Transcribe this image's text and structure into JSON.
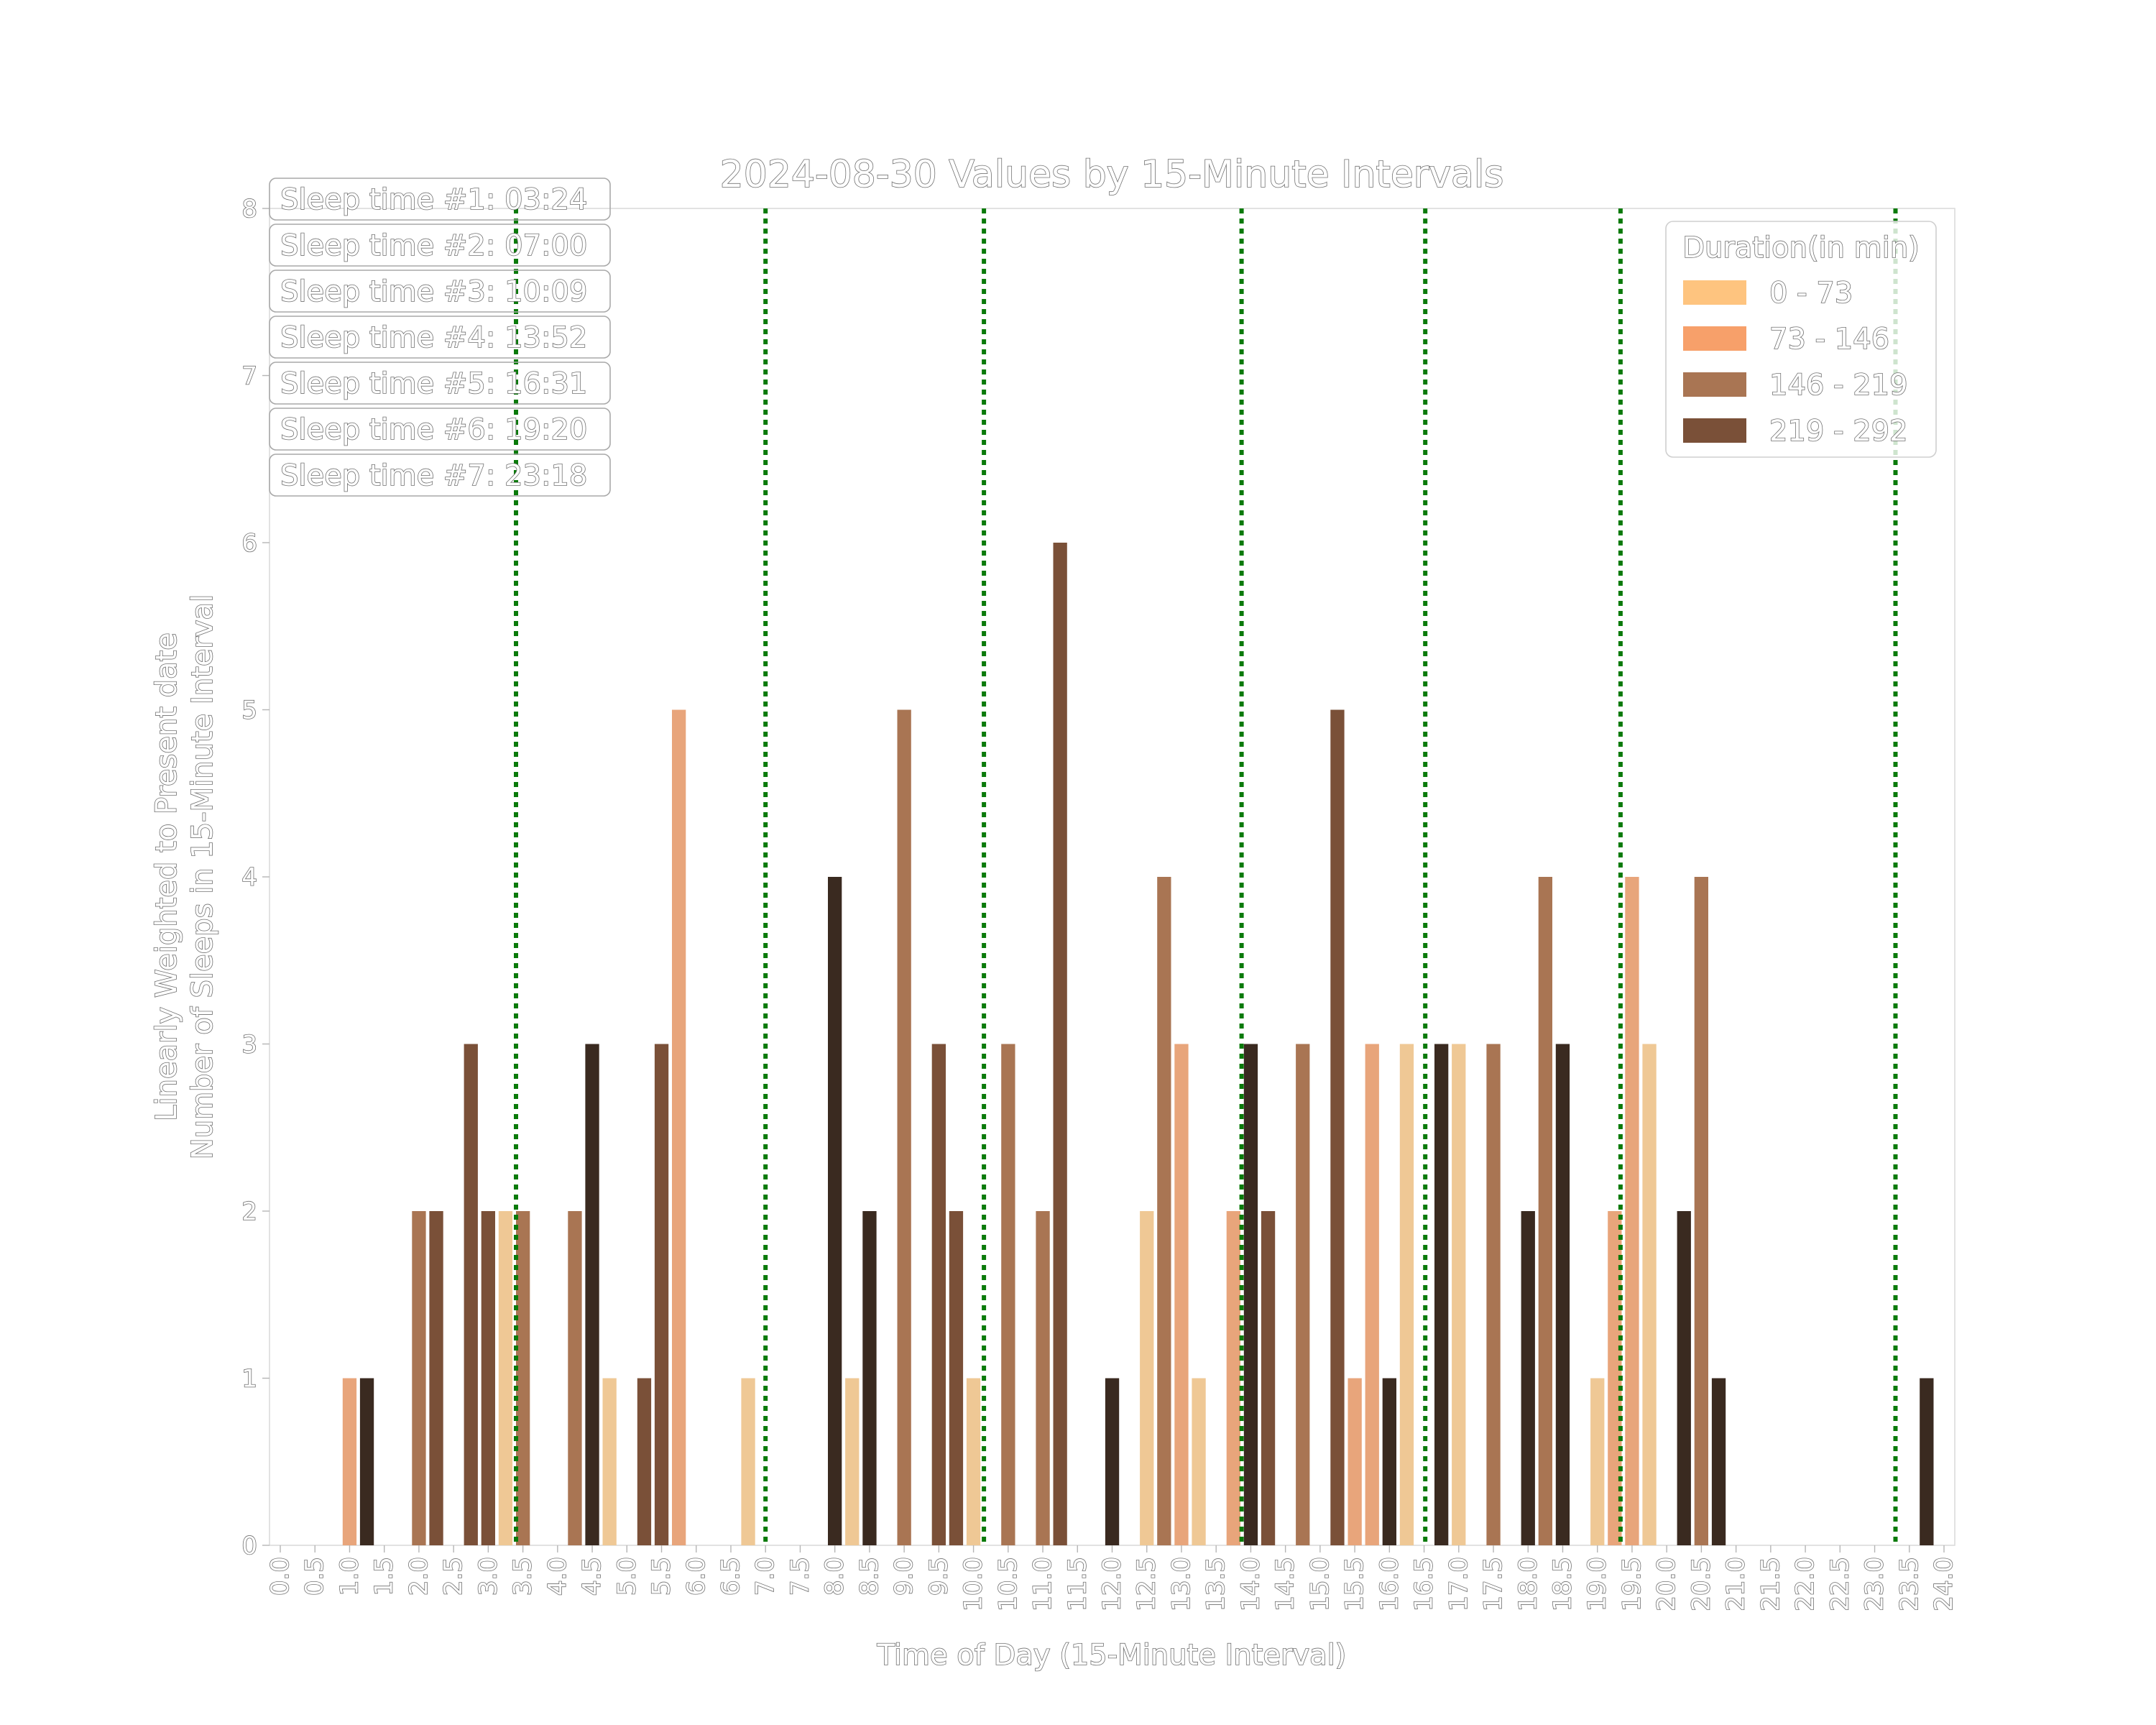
{
  "chart_data": {
    "type": "bar",
    "title": "2024-08-30 Values by 15-Minute Intervals",
    "xlabel": "Time of Day (15-Minute Interval)",
    "ylabel_lines": [
      "Linearly Weighted to Present date",
      "Number of Sleeps in 15-Minute Interval"
    ],
    "xlim": [
      0,
      24
    ],
    "ylim": [
      0,
      8
    ],
    "x_ticks": [
      0.0,
      0.5,
      1.0,
      1.5,
      2.0,
      2.5,
      3.0,
      3.5,
      4.0,
      4.5,
      5.0,
      5.5,
      6.0,
      6.5,
      7.0,
      7.5,
      8.0,
      8.5,
      9.0,
      9.5,
      10.0,
      10.5,
      11.0,
      11.5,
      12.0,
      12.5,
      13.0,
      13.5,
      14.0,
      14.5,
      15.0,
      15.5,
      16.0,
      16.5,
      17.0,
      17.5,
      18.0,
      18.5,
      19.0,
      19.5,
      20.0,
      20.5,
      21.0,
      21.5,
      22.0,
      22.5,
      23.0,
      23.5,
      24.0
    ],
    "y_ticks": [
      0,
      1,
      2,
      3,
      4,
      5,
      6,
      7,
      8
    ],
    "grid": false,
    "legend": {
      "title": "Duration(in min)",
      "placement": "top-right",
      "entries": [
        {
          "label": "0 - 73",
          "color": "#FEC47F"
        },
        {
          "label": "73 - 146",
          "color": "#F7A06A"
        },
        {
          "label": "146 - 219",
          "color": "#A97553"
        },
        {
          "label": "219 - 292",
          "color": "#7A5038"
        }
      ]
    },
    "bars": [
      {
        "x": 1.0,
        "value": 1,
        "color": "#E8A57B"
      },
      {
        "x": 1.25,
        "value": 1,
        "color": "#3A2A20"
      },
      {
        "x": 2.0,
        "value": 2,
        "color": "#A97553"
      },
      {
        "x": 2.25,
        "value": 2,
        "color": "#7A5038"
      },
      {
        "x": 2.75,
        "value": 3,
        "color": "#7A5038"
      },
      {
        "x": 3.0,
        "value": 2,
        "color": "#7A5038"
      },
      {
        "x": 3.25,
        "value": 2,
        "color": "#EFC895"
      },
      {
        "x": 3.5,
        "value": 2,
        "color": "#A97553"
      },
      {
        "x": 4.25,
        "value": 2,
        "color": "#A97553"
      },
      {
        "x": 4.5,
        "value": 3,
        "color": "#3A2A20"
      },
      {
        "x": 4.75,
        "value": 1,
        "color": "#EFC895"
      },
      {
        "x": 5.25,
        "value": 1,
        "color": "#7A5038"
      },
      {
        "x": 5.5,
        "value": 3,
        "color": "#7A5038"
      },
      {
        "x": 5.75,
        "value": 5,
        "color": "#E8A57B"
      },
      {
        "x": 6.75,
        "value": 1,
        "color": "#EFC895"
      },
      {
        "x": 8.0,
        "value": 4,
        "color": "#3A2A20"
      },
      {
        "x": 8.25,
        "value": 1,
        "color": "#EFC895"
      },
      {
        "x": 8.5,
        "value": 2,
        "color": "#3A2A20"
      },
      {
        "x": 9.0,
        "value": 5,
        "color": "#A97553"
      },
      {
        "x": 9.5,
        "value": 3,
        "color": "#7A5038"
      },
      {
        "x": 9.75,
        "value": 2,
        "color": "#7A5038"
      },
      {
        "x": 10.0,
        "value": 1,
        "color": "#EFC895"
      },
      {
        "x": 10.5,
        "value": 3,
        "color": "#A97553"
      },
      {
        "x": 11.0,
        "value": 2,
        "color": "#A97553"
      },
      {
        "x": 11.25,
        "value": 6,
        "color": "#7A5038"
      },
      {
        "x": 12.0,
        "value": 1,
        "color": "#3A2A20"
      },
      {
        "x": 12.5,
        "value": 2,
        "color": "#EFC895"
      },
      {
        "x": 12.75,
        "value": 4,
        "color": "#A97553"
      },
      {
        "x": 13.0,
        "value": 3,
        "color": "#E8A57B"
      },
      {
        "x": 13.25,
        "value": 1,
        "color": "#EFC895"
      },
      {
        "x": 13.75,
        "value": 2,
        "color": "#E8A57B"
      },
      {
        "x": 14.0,
        "value": 3,
        "color": "#3A2A20"
      },
      {
        "x": 14.25,
        "value": 2,
        "color": "#7A5038"
      },
      {
        "x": 14.75,
        "value": 3,
        "color": "#A97553"
      },
      {
        "x": 15.25,
        "value": 5,
        "color": "#7A5038"
      },
      {
        "x": 15.5,
        "value": 1,
        "color": "#E8A57B"
      },
      {
        "x": 15.75,
        "value": 3,
        "color": "#E8A57B"
      },
      {
        "x": 16.0,
        "value": 1,
        "color": "#3A2A20"
      },
      {
        "x": 16.25,
        "value": 3,
        "color": "#EFC895"
      },
      {
        "x": 16.75,
        "value": 3,
        "color": "#3A2A20"
      },
      {
        "x": 17.0,
        "value": 3,
        "color": "#EFC895"
      },
      {
        "x": 17.5,
        "value": 3,
        "color": "#A97553"
      },
      {
        "x": 18.0,
        "value": 2,
        "color": "#3A2A20"
      },
      {
        "x": 18.25,
        "value": 4,
        "color": "#A97553"
      },
      {
        "x": 18.5,
        "value": 3,
        "color": "#3A2A20"
      },
      {
        "x": 19.0,
        "value": 1,
        "color": "#EFC895"
      },
      {
        "x": 19.25,
        "value": 2,
        "color": "#E8A57B"
      },
      {
        "x": 19.5,
        "value": 4,
        "color": "#E8A57B"
      },
      {
        "x": 19.75,
        "value": 3,
        "color": "#EFC895"
      },
      {
        "x": 20.25,
        "value": 2,
        "color": "#3A2A20"
      },
      {
        "x": 20.5,
        "value": 4,
        "color": "#A97553"
      },
      {
        "x": 20.75,
        "value": 1,
        "color": "#3A2A20"
      },
      {
        "x": 23.75,
        "value": 1,
        "color": "#3A2A20"
      }
    ],
    "sleep_times": [
      {
        "label": "Sleep time #1: 03:24",
        "x": 3.4
      },
      {
        "label": "Sleep time #2: 07:00",
        "x": 7.0
      },
      {
        "label": "Sleep time #3: 10:09",
        "x": 10.15
      },
      {
        "label": "Sleep time #4: 13:52",
        "x": 13.8667
      },
      {
        "label": "Sleep time #5: 16:31",
        "x": 16.5167
      },
      {
        "label": "Sleep time #6: 19:20",
        "x": 19.3333
      },
      {
        "label": "Sleep time #7: 23:18",
        "x": 23.3
      }
    ],
    "sleep_line_color": "#0a7a0a"
  }
}
